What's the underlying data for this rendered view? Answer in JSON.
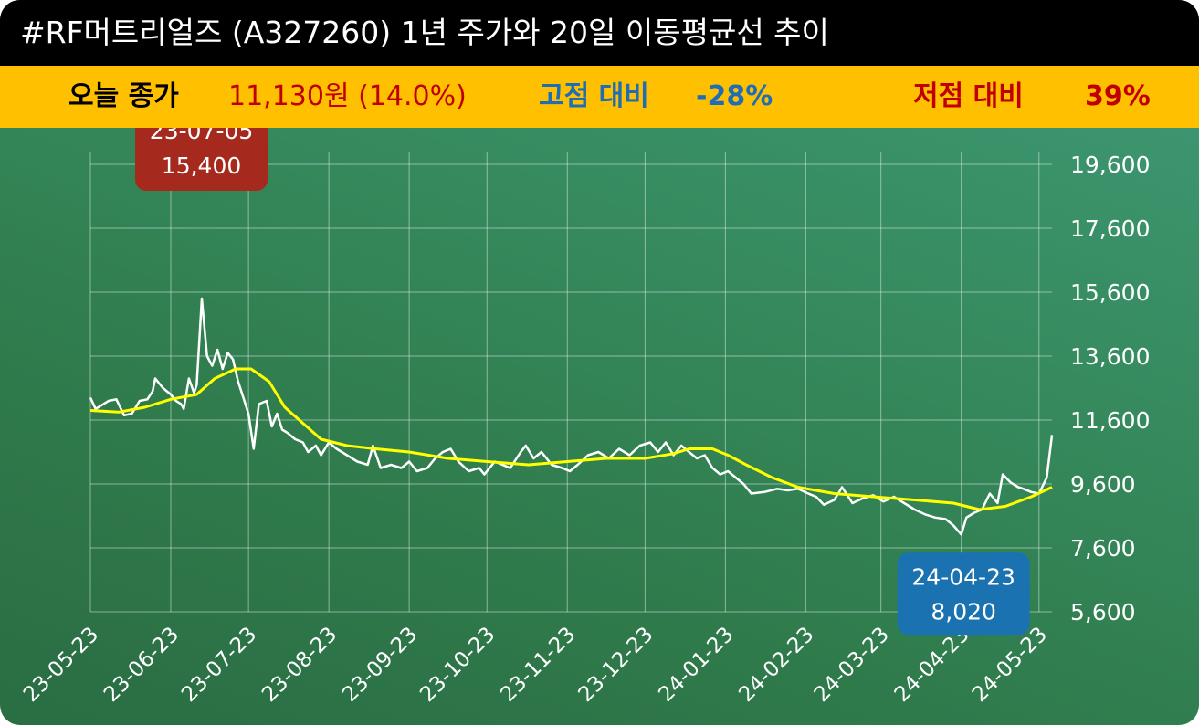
{
  "title": "#RF머트리얼즈 (A327260) 1년 주가와 20일 이동평균선 추이",
  "stats": {
    "close_label": "오늘 종가",
    "close_value": "11,130원 (14.0%)",
    "high_label": "고점 대비",
    "high_value": "-28%",
    "low_label": "저점 대비",
    "low_value": "39%"
  },
  "colors": {
    "background": "#2f7a4b",
    "title_bar": "#000000",
    "stats_bar": "#ffc000",
    "close": "#c00000",
    "high": "#1f6db5",
    "price_line": "#ffffff",
    "ma_line": "#ffff00",
    "high_callout": "#a52a1d",
    "low_callout": "#1a73b0"
  },
  "chart_data": {
    "type": "line",
    "title": "",
    "xlabel": "",
    "ylabel": "",
    "ylim": [
      5600,
      19600
    ],
    "yticks": [
      "19,600",
      "17,600",
      "15,600",
      "13,600",
      "11,600",
      "9,600",
      "7,600",
      "5,600"
    ],
    "ytick_values": [
      19600,
      17600,
      15600,
      13600,
      11600,
      9600,
      7600,
      5600
    ],
    "xticks": [
      "23-05-23",
      "23-06-23",
      "23-07-23",
      "23-08-23",
      "23-09-23",
      "23-10-23",
      "23-11-23",
      "23-12-23",
      "24-01-23",
      "24-02-23",
      "24-03-23",
      "24-04-23",
      "24-05-23"
    ],
    "xlim": [
      "2023-05-23",
      "2024-05-28"
    ],
    "grid": true,
    "series": [
      {
        "color": "#ffffff",
        "points": [
          [
            "2023-05-23",
            12300
          ],
          [
            "2023-05-25",
            11950
          ],
          [
            "2023-05-30",
            12200
          ],
          [
            "2023-06-02",
            12250
          ],
          [
            "2023-06-05",
            11750
          ],
          [
            "2023-06-08",
            11800
          ],
          [
            "2023-06-11",
            12200
          ],
          [
            "2023-06-14",
            12250
          ],
          [
            "2023-06-16",
            12500
          ],
          [
            "2023-06-17",
            12900
          ],
          [
            "2023-06-20",
            12600
          ],
          [
            "2023-06-23",
            12400
          ],
          [
            "2023-06-25",
            12200
          ],
          [
            "2023-06-27",
            12100
          ],
          [
            "2023-06-28",
            11950
          ],
          [
            "2023-06-30",
            12900
          ],
          [
            "2023-07-02",
            12450
          ],
          [
            "2023-07-03",
            12700
          ],
          [
            "2023-07-05",
            15400
          ],
          [
            "2023-07-07",
            13600
          ],
          [
            "2023-07-09",
            13300
          ],
          [
            "2023-07-11",
            13800
          ],
          [
            "2023-07-13",
            13200
          ],
          [
            "2023-07-15",
            13700
          ],
          [
            "2023-07-17",
            13500
          ],
          [
            "2023-07-19",
            12800
          ],
          [
            "2023-07-21",
            12300
          ],
          [
            "2023-07-23",
            11800
          ],
          [
            "2023-07-25",
            10700
          ],
          [
            "2023-07-27",
            12100
          ],
          [
            "2023-07-30",
            12200
          ],
          [
            "2023-08-01",
            11400
          ],
          [
            "2023-08-03",
            11800
          ],
          [
            "2023-08-05",
            11300
          ],
          [
            "2023-08-07",
            11200
          ],
          [
            "2023-08-10",
            11000
          ],
          [
            "2023-08-13",
            10900
          ],
          [
            "2023-08-15",
            10600
          ],
          [
            "2023-08-18",
            10800
          ],
          [
            "2023-08-20",
            10500
          ],
          [
            "2023-08-23",
            10900
          ],
          [
            "2023-08-26",
            10700
          ],
          [
            "2023-08-30",
            10500
          ],
          [
            "2023-09-03",
            10300
          ],
          [
            "2023-09-07",
            10200
          ],
          [
            "2023-09-09",
            10800
          ],
          [
            "2023-09-12",
            10100
          ],
          [
            "2023-09-16",
            10200
          ],
          [
            "2023-09-20",
            10100
          ],
          [
            "2023-09-23",
            10300
          ],
          [
            "2023-09-26",
            10000
          ],
          [
            "2023-09-30",
            10100
          ],
          [
            "2023-10-03",
            10400
          ],
          [
            "2023-10-06",
            10600
          ],
          [
            "2023-10-09",
            10700
          ],
          [
            "2023-10-12",
            10300
          ],
          [
            "2023-10-16",
            10000
          ],
          [
            "2023-10-20",
            10100
          ],
          [
            "2023-10-22",
            9900
          ],
          [
            "2023-10-26",
            10300
          ],
          [
            "2023-11-01",
            10100
          ],
          [
            "2023-11-05",
            10600
          ],
          [
            "2023-11-07",
            10800
          ],
          [
            "2023-11-10",
            10400
          ],
          [
            "2023-11-13",
            10600
          ],
          [
            "2023-11-17",
            10200
          ],
          [
            "2023-11-21",
            10100
          ],
          [
            "2023-11-24",
            10000
          ],
          [
            "2023-11-27",
            10200
          ],
          [
            "2023-12-01",
            10500
          ],
          [
            "2023-12-05",
            10600
          ],
          [
            "2023-12-09",
            10400
          ],
          [
            "2023-12-13",
            10700
          ],
          [
            "2023-12-17",
            10500
          ],
          [
            "2023-12-21",
            10800
          ],
          [
            "2023-12-25",
            10900
          ],
          [
            "2023-12-28",
            10600
          ],
          [
            "2023-12-31",
            10900
          ],
          [
            "2024-01-03",
            10500
          ],
          [
            "2024-01-06",
            10800
          ],
          [
            "2024-01-09",
            10600
          ],
          [
            "2024-01-12",
            10400
          ],
          [
            "2024-01-15",
            10500
          ],
          [
            "2024-01-18",
            10100
          ],
          [
            "2024-01-21",
            9900
          ],
          [
            "2024-01-24",
            10000
          ],
          [
            "2024-01-27",
            9800
          ],
          [
            "2024-01-30",
            9600
          ],
          [
            "2024-02-02",
            9300
          ],
          [
            "2024-02-07",
            9350
          ],
          [
            "2024-02-12",
            9450
          ],
          [
            "2024-02-16",
            9400
          ],
          [
            "2024-02-20",
            9450
          ],
          [
            "2024-02-24",
            9300
          ],
          [
            "2024-02-27",
            9200
          ],
          [
            "2024-03-01",
            8950
          ],
          [
            "2024-03-05",
            9100
          ],
          [
            "2024-03-08",
            9500
          ],
          [
            "2024-03-12",
            9000
          ],
          [
            "2024-03-16",
            9150
          ],
          [
            "2024-03-20",
            9250
          ],
          [
            "2024-03-24",
            9050
          ],
          [
            "2024-03-28",
            9200
          ],
          [
            "2024-04-01",
            9000
          ],
          [
            "2024-04-05",
            8800
          ],
          [
            "2024-04-09",
            8650
          ],
          [
            "2024-04-13",
            8550
          ],
          [
            "2024-04-17",
            8500
          ],
          [
            "2024-04-20",
            8300
          ],
          [
            "2024-04-23",
            8020
          ],
          [
            "2024-04-25",
            8550
          ],
          [
            "2024-04-28",
            8700
          ],
          [
            "2024-05-01",
            8800
          ],
          [
            "2024-05-04",
            9300
          ],
          [
            "2024-05-07",
            9000
          ],
          [
            "2024-05-09",
            9900
          ],
          [
            "2024-05-12",
            9650
          ],
          [
            "2024-05-15",
            9500
          ],
          [
            "2024-05-17",
            9450
          ],
          [
            "2024-05-20",
            9350
          ],
          [
            "2024-05-23",
            9300
          ],
          [
            "2024-05-26",
            9800
          ],
          [
            "2024-05-28",
            11130
          ]
        ]
      },
      {
        "color": "#ffff00",
        "points": [
          [
            "2023-05-23",
            11900
          ],
          [
            "2023-06-03",
            11850
          ],
          [
            "2023-06-13",
            12000
          ],
          [
            "2023-06-23",
            12250
          ],
          [
            "2023-07-03",
            12400
          ],
          [
            "2023-07-10",
            12900
          ],
          [
            "2023-07-18",
            13200
          ],
          [
            "2023-07-24",
            13200
          ],
          [
            "2023-07-31",
            12800
          ],
          [
            "2023-08-06",
            12000
          ],
          [
            "2023-08-13",
            11500
          ],
          [
            "2023-08-20",
            11000
          ],
          [
            "2023-08-30",
            10800
          ],
          [
            "2023-09-10",
            10700
          ],
          [
            "2023-09-23",
            10600
          ],
          [
            "2023-10-08",
            10400
          ],
          [
            "2023-10-23",
            10300
          ],
          [
            "2023-11-08",
            10200
          ],
          [
            "2023-11-23",
            10300
          ],
          [
            "2023-12-08",
            10400
          ],
          [
            "2023-12-23",
            10400
          ],
          [
            "2024-01-03",
            10550
          ],
          [
            "2024-01-09",
            10700
          ],
          [
            "2024-01-18",
            10700
          ],
          [
            "2024-01-24",
            10500
          ],
          [
            "2024-01-31",
            10200
          ],
          [
            "2024-02-10",
            9800
          ],
          [
            "2024-02-20",
            9500
          ],
          [
            "2024-03-05",
            9300
          ],
          [
            "2024-03-20",
            9200
          ],
          [
            "2024-04-05",
            9100
          ],
          [
            "2024-04-20",
            9000
          ],
          [
            "2024-04-30",
            8800
          ],
          [
            "2024-05-10",
            8900
          ],
          [
            "2024-05-20",
            9200
          ],
          [
            "2024-05-28",
            9500
          ]
        ]
      }
    ],
    "annotations": [
      {
        "date_text": "23-07-05",
        "value_text": "15,400",
        "date": "2023-07-05",
        "value": 15400,
        "color": "#a52a1d"
      },
      {
        "date_text": "24-04-23",
        "value_text": "8,020",
        "date": "2024-04-23",
        "value": 8020,
        "color": "#1a73b0"
      }
    ]
  }
}
